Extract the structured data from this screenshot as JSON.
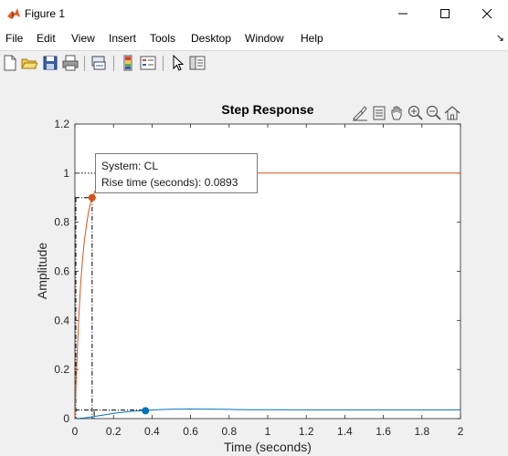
{
  "window": {
    "title": "Figure 1"
  },
  "menu": {
    "items": [
      "File",
      "Edit",
      "View",
      "Insert",
      "Tools",
      "Desktop",
      "Window",
      "Help"
    ],
    "dock_arrow": "↘"
  },
  "toolbar": {
    "icons": [
      "new-figure-icon",
      "open-file-icon",
      "save-icon",
      "print-icon",
      "link-plot-icon",
      "colorbar-icon",
      "legend-icon",
      "edit-plot-icon",
      "property-inspector-icon"
    ]
  },
  "axes_toolbar": {
    "icons": [
      "brush-icon",
      "datatip-icon",
      "pan-icon",
      "zoom-in-icon",
      "zoom-out-icon",
      "home-icon"
    ]
  },
  "datatip": {
    "line1": "System: CL",
    "line2": "Rise time (seconds): 0.0893"
  },
  "colors": {
    "cl_series": "#d95319",
    "open_series": "#0072bd",
    "grid": "#dcdcdc"
  },
  "chart_data": {
    "type": "line",
    "title": "Step Response",
    "xlabel": "Time (seconds)",
    "ylabel": "Amplitude",
    "xlim": [
      0,
      2
    ],
    "ylim": [
      0,
      1.2
    ],
    "xticks": [
      0,
      0.2,
      0.4,
      0.6,
      0.8,
      1,
      1.2,
      1.4,
      1.6,
      1.8,
      2
    ],
    "yticks": [
      0,
      0.2,
      0.4,
      0.6,
      0.8,
      1,
      1.2
    ],
    "grid": false,
    "series": [
      {
        "name": "CL",
        "color": "#d95319",
        "x": [
          0,
          0.01,
          0.02,
          0.03,
          0.04,
          0.05,
          0.06,
          0.07,
          0.08,
          0.09,
          0.1,
          0.12,
          0.14,
          0.16,
          0.18,
          0.2,
          0.25,
          0.3,
          0.4,
          0.5,
          0.7,
          1.0,
          1.5,
          2.0
        ],
        "y": [
          0,
          0.23,
          0.41,
          0.55,
          0.65,
          0.73,
          0.79,
          0.84,
          0.875,
          0.9,
          0.92,
          0.95,
          0.968,
          0.98,
          0.987,
          0.992,
          0.997,
          0.999,
          1.0,
          1.0,
          1.0,
          1.0,
          1.0,
          1.0
        ],
        "marker": {
          "x": 0.0893,
          "y": 0.9
        },
        "final_value": 1.0
      },
      {
        "name": "",
        "color": "#0072bd",
        "x": [
          0,
          0.05,
          0.1,
          0.15,
          0.2,
          0.25,
          0.3,
          0.35,
          0.4,
          0.45,
          0.5,
          0.55,
          0.6,
          0.65,
          0.7,
          0.8,
          0.9,
          1.0,
          1.2,
          1.4,
          1.6,
          1.8,
          2.0
        ],
        "y": [
          0,
          0.003,
          0.009,
          0.015,
          0.021,
          0.026,
          0.03,
          0.033,
          0.035,
          0.037,
          0.038,
          0.0385,
          0.039,
          0.0388,
          0.0385,
          0.0375,
          0.0365,
          0.036,
          0.0357,
          0.0357,
          0.0357,
          0.0357,
          0.0357
        ],
        "marker": {
          "x": 0.366,
          "y": 0.032
        }
      }
    ],
    "reference_lines": {
      "rise_level": 0.9,
      "rise_time": 0.0893,
      "final_value": 1.0,
      "low_level": 0.035
    }
  }
}
